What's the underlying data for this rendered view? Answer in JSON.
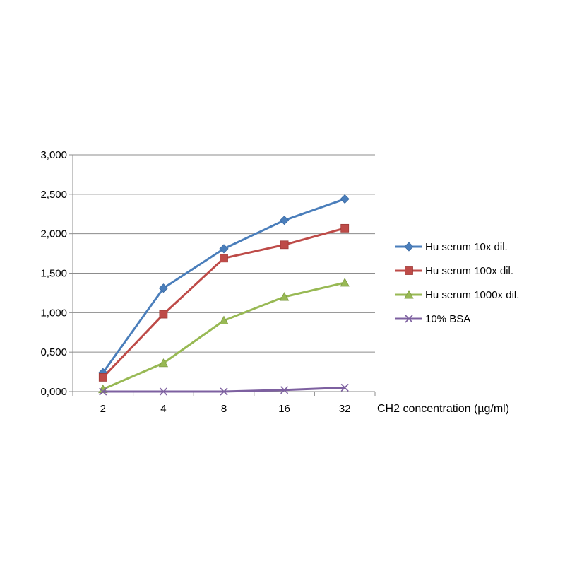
{
  "chart_data": {
    "type": "line",
    "title": "",
    "xlabel": "CH2 concentration (µg/ml)",
    "ylabel": "",
    "categories": [
      "2",
      "4",
      "8",
      "16",
      "32"
    ],
    "ylim": [
      0,
      3
    ],
    "yticks": [
      "0,000",
      "0,500",
      "1,000",
      "1,500",
      "2,000",
      "2,500",
      "3,000"
    ],
    "grid": "horizontal",
    "legend_position": "right",
    "series": [
      {
        "name": "Hu serum 10x dil.",
        "marker": "diamond",
        "color": "#4a7ebb",
        "values": [
          0.24,
          1.31,
          1.81,
          2.17,
          2.44
        ]
      },
      {
        "name": "Hu serum 100x dil.",
        "marker": "square",
        "color": "#be4b48",
        "values": [
          0.18,
          0.98,
          1.69,
          1.86,
          2.07
        ]
      },
      {
        "name": "Hu serum 1000x dil.",
        "marker": "triangle",
        "color": "#98b954",
        "values": [
          0.03,
          0.36,
          0.9,
          1.2,
          1.38
        ]
      },
      {
        "name": "10% BSA",
        "marker": "x",
        "color": "#7d60a0",
        "values": [
          0.0,
          0.0,
          0.0,
          0.02,
          0.05
        ]
      }
    ]
  }
}
